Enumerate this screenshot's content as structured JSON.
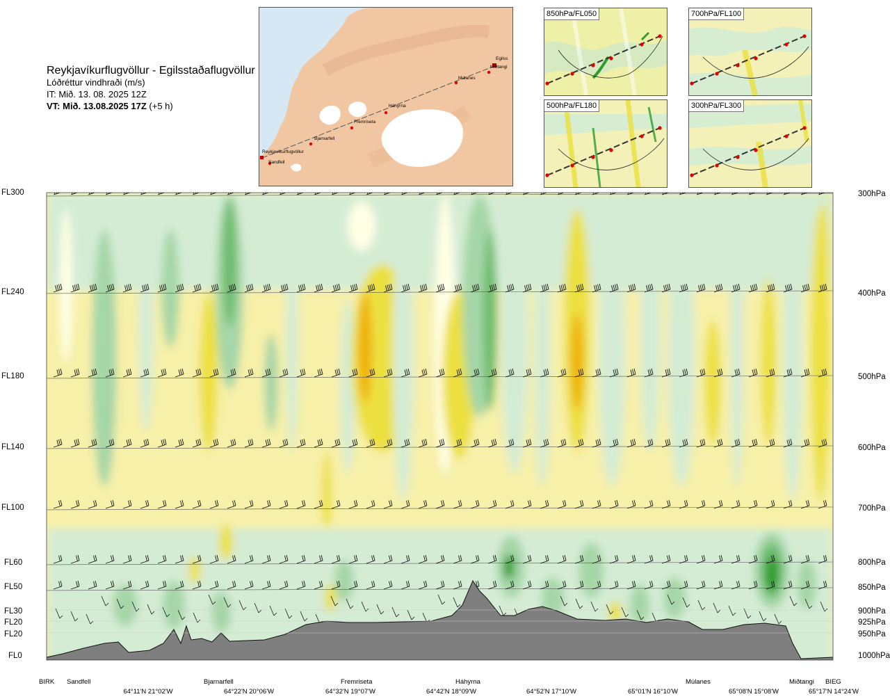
{
  "header": {
    "title": "Reykjavíkurflugvöllur - Egilsstaðaflugvöllur",
    "subtitle": "Lóðréttur vindhraði (m/s)",
    "init_time": "IT: Mið. 13. 08. 2025 12Z",
    "valid_time": "VT: Mið. 13.08.2025 17Z",
    "valid_offset": "(+5 h)"
  },
  "map": {
    "places": [
      "Reykjavíkurflugvöllur",
      "Sandfell",
      "Bjarnarfell",
      "Fremriseta",
      "Háhyrna",
      "Múlanes",
      "Egilss",
      "Miðtangi"
    ]
  },
  "panels": [
    {
      "label": "850hPa/FL050"
    },
    {
      "label": "700hPa/FL100"
    },
    {
      "label": "500hPa/FL180"
    },
    {
      "label": "300hPa/FL300"
    }
  ],
  "colors": {
    "strong_down": "#2e9e2e",
    "down": "#6cbc6c",
    "mid_down": "#a5d6a7",
    "weak_down": "#d4ecd4",
    "near_zero": "#ffffe6",
    "weak_up": "#f7f0a8",
    "up": "#ece040",
    "strong_up": "#f0b000",
    "terrain": "#7f7f7f"
  },
  "chart_data": {
    "type": "heatmap",
    "title": "Reykjavíkurflugvöllur - Egilsstaðaflugvöllur",
    "variable": "Lóðréttur vindhraði (m/s)",
    "left_axis": {
      "flight_levels": [
        "FL300",
        "FL240",
        "FL180",
        "FL140",
        "FL100",
        "FL60",
        "FL50",
        "FL30",
        "FL20",
        "FL20",
        "FL0"
      ]
    },
    "right_axis": {
      "pressure_levels": [
        "300hPa",
        "400hPa",
        "500hPa",
        "600hPa",
        "700hPa",
        "800hPa",
        "850hPa",
        "900hPa",
        "925hPa",
        "950hPa",
        "1000hPa"
      ]
    },
    "x_axis": {
      "locations": [
        "BIRK",
        "Sandfell",
        "Bjarnarfell",
        "Fremriseta",
        "Háhyrna",
        "Múlanes",
        "Miðtangi",
        "BIEG"
      ],
      "coordinates": [
        "64°11'N 21°02'W",
        "64°22'N 20°06'W",
        "64°32'N 19°07'W",
        "64°42'N 18°09'W",
        "64°52'N 17°10'W",
        "65°01'N 16°10'W",
        "65°08'N 15°08'W",
        "65°17'N 14°24'W"
      ]
    },
    "features": [
      {
        "x": 0.28,
        "level": "FL240",
        "sign": "down"
      },
      {
        "x": 0.13,
        "level": "FL180",
        "sign": "up"
      },
      {
        "x": 0.4,
        "level": "FL200",
        "sign": "up"
      },
      {
        "x": 0.51,
        "level": "FL180",
        "sign": "up"
      },
      {
        "x": 0.57,
        "level": "FL240",
        "sign": "down"
      },
      {
        "x": 0.68,
        "level": "FL200",
        "sign": "up"
      },
      {
        "x": 0.82,
        "level": "FL180",
        "sign": "up"
      },
      {
        "x": 0.92,
        "level": "FL220",
        "sign": "up"
      },
      {
        "x": 0.59,
        "level": "FL60",
        "sign": "down"
      },
      {
        "x": 0.92,
        "level": "FL50",
        "sign": "down"
      }
    ]
  }
}
